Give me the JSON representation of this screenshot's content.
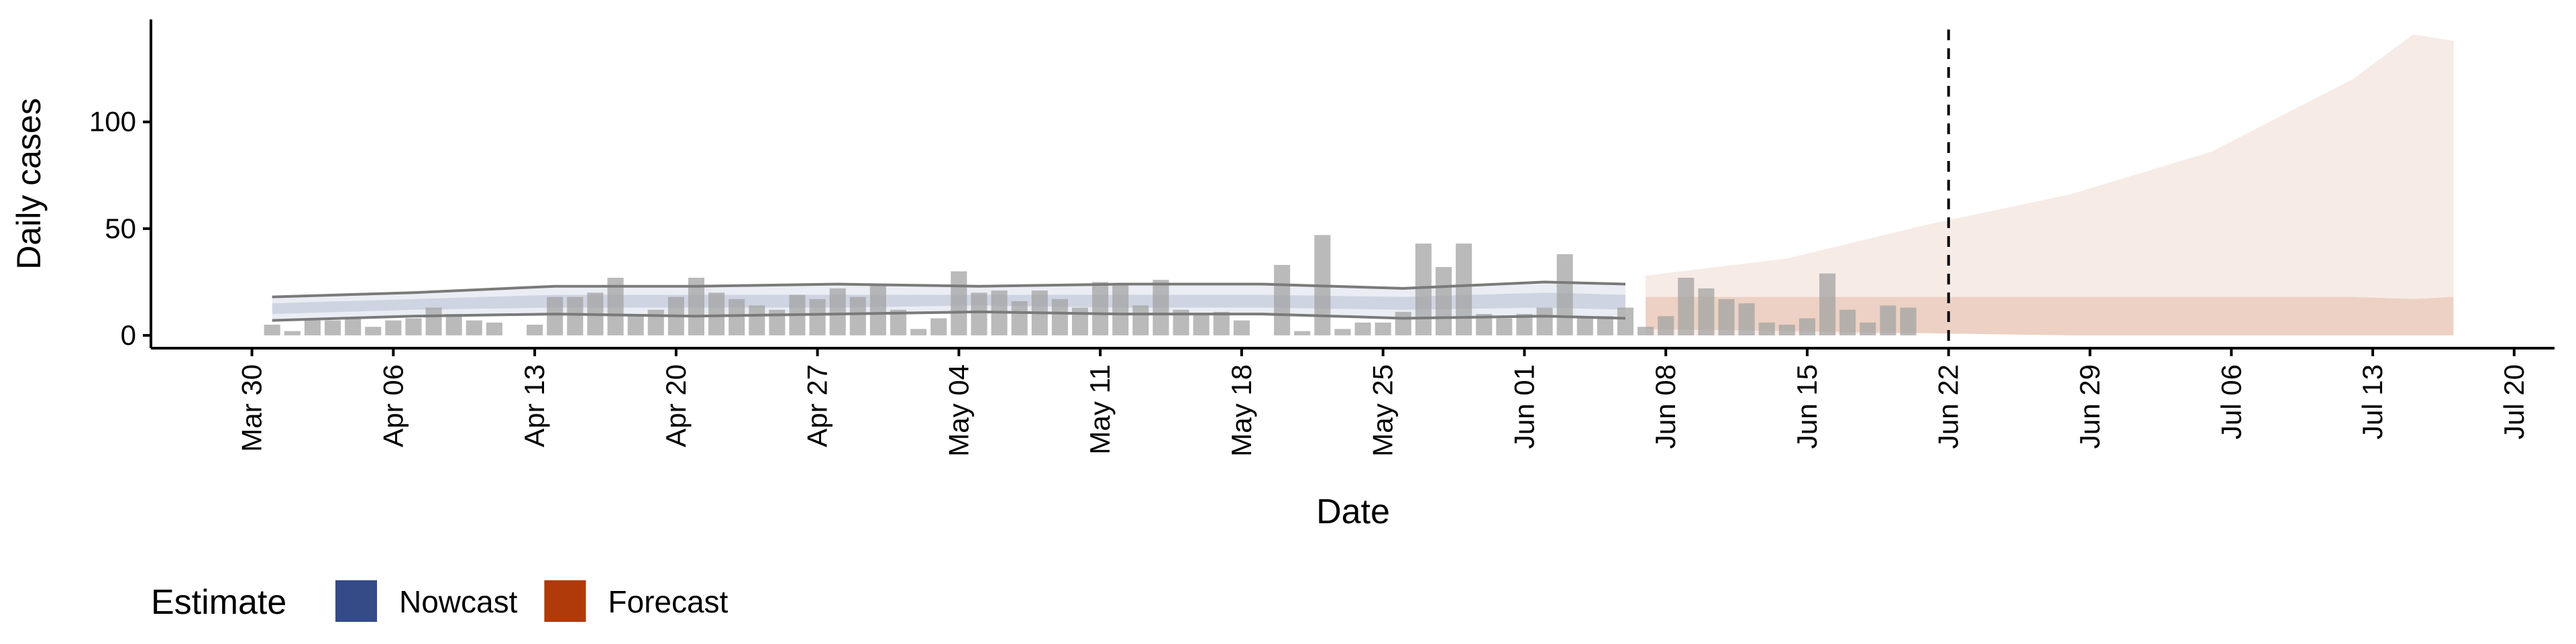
{
  "chart_data": {
    "type": "bar",
    "y_label": "Daily cases",
    "x_label": "Date",
    "xlim": [
      "Mar 25",
      "Jul 22"
    ],
    "ylim": [
      -6,
      148
    ],
    "yticks": [
      0,
      50,
      100
    ],
    "xticks": [
      "Mar 30",
      "Apr 06",
      "Apr 13",
      "Apr 20",
      "Apr 27",
      "May 04",
      "May 11",
      "May 18",
      "May 25",
      "Jun 01",
      "Jun 08",
      "Jun 15",
      "Jun 22",
      "Jun 29",
      "Jul 06",
      "Jul 13",
      "Jul 20"
    ],
    "vline": "Jun 22",
    "bar_color": "#a3a3a3",
    "x": [
      "Mar 31",
      "Apr 01",
      "Apr 02",
      "Apr 03",
      "Apr 04",
      "Apr 05",
      "Apr 06",
      "Apr 07",
      "Apr 08",
      "Apr 09",
      "Apr 10",
      "Apr 11",
      "Apr 12",
      "Apr 13",
      "Apr 14",
      "Apr 15",
      "Apr 16",
      "Apr 17",
      "Apr 18",
      "Apr 19",
      "Apr 20",
      "Apr 21",
      "Apr 22",
      "Apr 23",
      "Apr 24",
      "Apr 25",
      "Apr 26",
      "Apr 27",
      "Apr 28",
      "Apr 29",
      "Apr 30",
      "May 01",
      "May 02",
      "May 03",
      "May 04",
      "May 05",
      "May 06",
      "May 07",
      "May 08",
      "May 09",
      "May 10",
      "May 11",
      "May 12",
      "May 13",
      "May 14",
      "May 15",
      "May 16",
      "May 17",
      "May 18",
      "May 19",
      "May 20",
      "May 21",
      "May 22",
      "May 23",
      "May 24",
      "May 25",
      "May 26",
      "May 27",
      "May 28",
      "May 29",
      "May 30",
      "May 31",
      "Jun 01",
      "Jun 02",
      "Jun 03",
      "Jun 04",
      "Jun 05",
      "Jun 06",
      "Jun 07",
      "Jun 08",
      "Jun 09",
      "Jun 10",
      "Jun 11",
      "Jun 12",
      "Jun 13",
      "Jun 14",
      "Jun 15",
      "Jun 16",
      "Jun 17",
      "Jun 18",
      "Jun 19",
      "Jun 20"
    ],
    "values": [
      5,
      2,
      7,
      7,
      8,
      4,
      7,
      8,
      13,
      10,
      7,
      6,
      0,
      5,
      18,
      18,
      20,
      27,
      10,
      12,
      18,
      27,
      20,
      17,
      14,
      12,
      19,
      17,
      22,
      18,
      24,
      12,
      3,
      8,
      30,
      20,
      21,
      16,
      21,
      17,
      13,
      25,
      24,
      14,
      26,
      12,
      10,
      11,
      7,
      0,
      33,
      2,
      47,
      3,
      6,
      6,
      11,
      43,
      32,
      43,
      10,
      8,
      10,
      13,
      38,
      8,
      9,
      13,
      4,
      9,
      27,
      22,
      17,
      15,
      6,
      5,
      8,
      29,
      12,
      6,
      14,
      13
    ],
    "estimates": [
      {
        "name": "Nowcast",
        "color": "#344b87",
        "line_color": "#7a7a7a",
        "x": [
          "Mar 31",
          "Apr 07",
          "Apr 14",
          "Apr 21",
          "Apr 28",
          "May 05",
          "May 12",
          "May 19",
          "May 26",
          "Jun 02",
          "Jun 06"
        ],
        "upper_90": [
          18,
          20,
          23,
          23,
          24,
          23,
          24,
          24,
          22,
          25,
          24
        ],
        "lower_90": [
          7,
          9,
          10,
          9,
          10,
          11,
          10,
          10,
          8,
          9,
          8
        ],
        "upper_50": [
          15,
          17,
          19,
          19,
          19,
          19,
          19,
          19,
          18,
          20,
          19
        ],
        "lower_50": [
          10,
          12,
          13,
          13,
          13,
          14,
          13,
          13,
          12,
          13,
          12
        ]
      },
      {
        "name": "Forecast",
        "color": "#b03a0a",
        "x": [
          "Jun 07",
          "Jun 14",
          "Jun 21",
          "Jun 28",
          "Jul 05",
          "Jul 12",
          "Jul 15",
          "Jul 17"
        ],
        "upper_90": [
          28,
          36,
          52,
          66,
          86,
          120,
          141,
          138
        ],
        "lower_90": [
          0,
          0,
          1,
          0,
          0,
          0,
          0,
          0
        ],
        "upper_50": [
          18,
          18,
          18,
          18,
          18,
          18,
          17,
          18
        ],
        "lower_50": [
          3,
          2,
          1,
          0,
          0,
          0,
          0,
          0
        ]
      }
    ],
    "legend_title": "Estimate",
    "legend_position": "bottom-left"
  }
}
